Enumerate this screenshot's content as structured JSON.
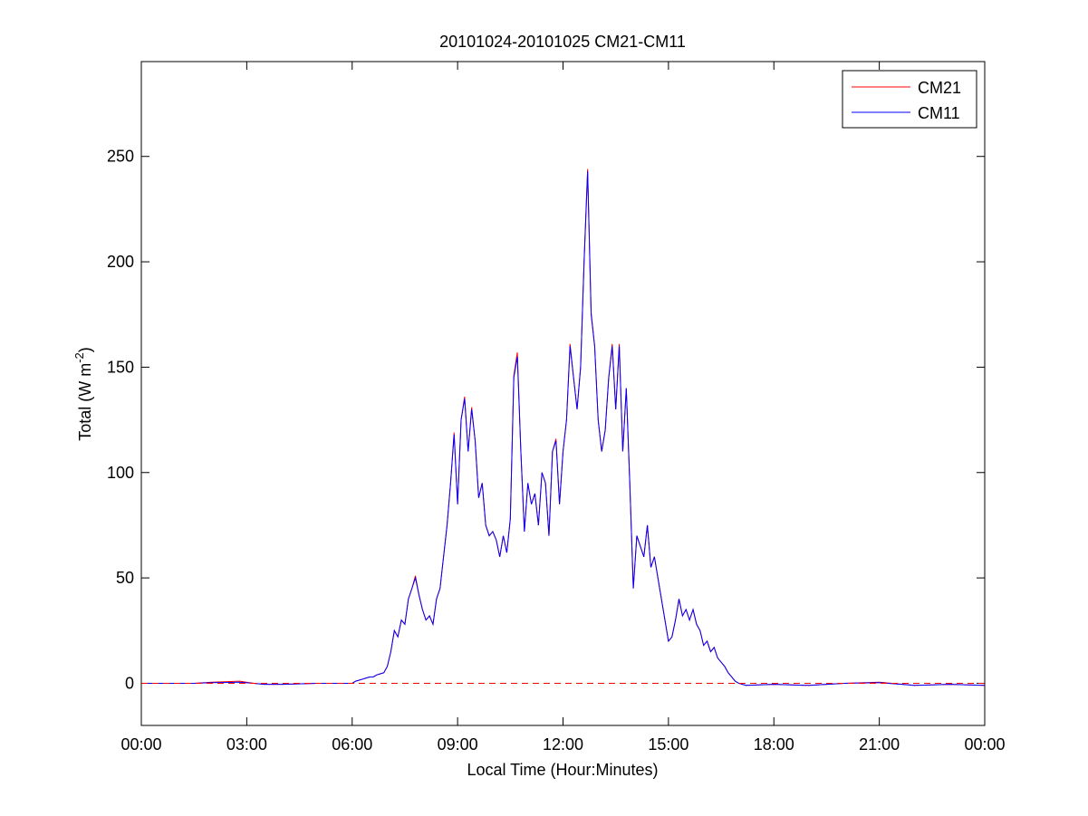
{
  "chart_data": {
    "type": "line",
    "title": "20101024-20101025 CM21-CM11",
    "x_label": "Local Time (Hour:Minutes)",
    "y_label": {
      "text": "Total (W m",
      "superscript": "-2",
      "suffix": ")"
    },
    "x": [
      0,
      1,
      1.5,
      2,
      2.8,
      3.2,
      3.5,
      4,
      5,
      6.0,
      6.1,
      6.2,
      6.3,
      6.4,
      6.5,
      6.6,
      6.7,
      6.8,
      6.9,
      7.0,
      7.1,
      7.2,
      7.3,
      7.4,
      7.5,
      7.6,
      7.7,
      7.8,
      7.9,
      8.0,
      8.1,
      8.2,
      8.3,
      8.4,
      8.5,
      8.6,
      8.7,
      8.8,
      8.9,
      9.0,
      9.1,
      9.2,
      9.3,
      9.4,
      9.5,
      9.6,
      9.7,
      9.8,
      9.9,
      10.0,
      10.1,
      10.2,
      10.3,
      10.4,
      10.5,
      10.6,
      10.7,
      10.8,
      10.9,
      11.0,
      11.1,
      11.2,
      11.3,
      11.4,
      11.5,
      11.6,
      11.7,
      11.8,
      11.9,
      12.0,
      12.1,
      12.2,
      12.3,
      12.4,
      12.5,
      12.6,
      12.7,
      12.8,
      12.9,
      13.0,
      13.1,
      13.2,
      13.3,
      13.4,
      13.5,
      13.6,
      13.7,
      13.8,
      13.9,
      14.0,
      14.1,
      14.2,
      14.3,
      14.4,
      14.5,
      14.6,
      14.7,
      14.8,
      14.9,
      15.0,
      15.1,
      15.2,
      15.3,
      15.4,
      15.5,
      15.6,
      15.7,
      15.8,
      15.9,
      16.0,
      16.1,
      16.2,
      16.3,
      16.4,
      16.5,
      16.6,
      16.7,
      16.8,
      16.9,
      17.0,
      17.2,
      18,
      19,
      20,
      21,
      22,
      23,
      24
    ],
    "series": [
      {
        "name": "CM21",
        "color": "#ff0000",
        "values": [
          0,
          0,
          0,
          0.5,
          1,
          0,
          -0.5,
          -0.5,
          0,
          0,
          1,
          1.5,
          2,
          2.5,
          3,
          3,
          4,
          4.5,
          5,
          8,
          15,
          25,
          22,
          30,
          28,
          40,
          45,
          51,
          42,
          35,
          30,
          32,
          28,
          40,
          45,
          60,
          75,
          95,
          119,
          85,
          125,
          136,
          110,
          131,
          115,
          88,
          95,
          75,
          70,
          72,
          68,
          60,
          70,
          62,
          78,
          146,
          157,
          110,
          72,
          95,
          85,
          90,
          75,
          100,
          95,
          70,
          110,
          116,
          85,
          110,
          125,
          161,
          145,
          130,
          150,
          201,
          244,
          176,
          160,
          125,
          110,
          120,
          145,
          161,
          130,
          161,
          110,
          140,
          95,
          45,
          70,
          65,
          60,
          75,
          55,
          60,
          50,
          40,
          30,
          20,
          22,
          30,
          40,
          32,
          35,
          30,
          35,
          28,
          25,
          18,
          20,
          15,
          17,
          12,
          10,
          8,
          5,
          3,
          1,
          0,
          -1,
          -0.5,
          -1,
          0,
          0.5,
          -1,
          -0.5,
          -1
        ]
      },
      {
        "name": "CM11",
        "color": "#0000ff",
        "values": [
          0,
          0,
          0,
          0.3,
          0.5,
          0,
          -0.5,
          -0.5,
          0,
          0,
          1,
          1.5,
          2,
          2.5,
          3,
          3,
          4,
          4.5,
          5,
          8,
          15,
          25,
          22,
          30,
          28,
          40,
          45,
          50,
          42,
          35,
          30,
          32,
          28,
          40,
          45,
          60,
          75,
          95,
          118,
          85,
          125,
          135,
          110,
          130,
          115,
          88,
          95,
          75,
          70,
          72,
          68,
          60,
          70,
          62,
          78,
          145,
          155,
          110,
          72,
          95,
          85,
          90,
          75,
          100,
          95,
          70,
          110,
          115,
          85,
          110,
          125,
          160,
          145,
          130,
          150,
          200,
          243,
          175,
          160,
          125,
          110,
          120,
          145,
          160,
          130,
          160,
          110,
          140,
          95,
          45,
          70,
          65,
          60,
          75,
          55,
          60,
          50,
          40,
          30,
          20,
          22,
          30,
          40,
          32,
          35,
          30,
          35,
          28,
          25,
          18,
          20,
          15,
          17,
          12,
          10,
          8,
          5,
          3,
          1,
          0,
          -1,
          -0.5,
          -1,
          0,
          0.3,
          -1,
          -0.5,
          -1
        ]
      }
    ],
    "reference_line": {
      "value": 0,
      "color": "#ff0000",
      "style": "dashed"
    },
    "xlim": [
      0,
      24
    ],
    "xticks": [
      {
        "value": 0,
        "label": "00:00"
      },
      {
        "value": 3,
        "label": "03:00"
      },
      {
        "value": 6,
        "label": "06:00"
      },
      {
        "value": 9,
        "label": "09:00"
      },
      {
        "value": 12,
        "label": "12:00"
      },
      {
        "value": 15,
        "label": "15:00"
      },
      {
        "value": 18,
        "label": "18:00"
      },
      {
        "value": 21,
        "label": "21:00"
      },
      {
        "value": 24,
        "label": "00:00"
      }
    ],
    "ylim": [
      -20,
      295
    ],
    "yticks": [
      0,
      50,
      100,
      150,
      200,
      250
    ],
    "grid": false,
    "legend": "top-right"
  }
}
